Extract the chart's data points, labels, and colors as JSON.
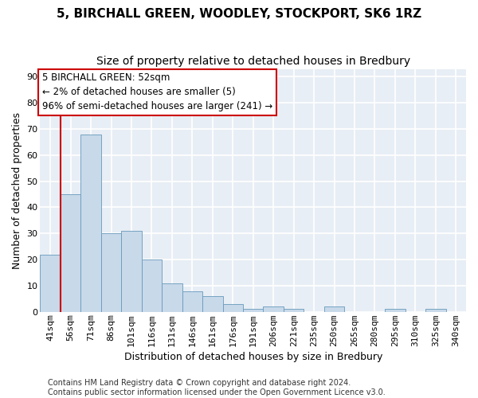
{
  "title": "5, BIRCHALL GREEN, WOODLEY, STOCKPORT, SK6 1RZ",
  "subtitle": "Size of property relative to detached houses in Bredbury",
  "xlabel": "Distribution of detached houses by size in Bredbury",
  "ylabel": "Number of detached properties",
  "bar_color": "#c8d9ea",
  "bar_edge_color": "#6699bb",
  "categories": [
    "41sqm",
    "56sqm",
    "71sqm",
    "86sqm",
    "101sqm",
    "116sqm",
    "131sqm",
    "146sqm",
    "161sqm",
    "176sqm",
    "191sqm",
    "206sqm",
    "221sqm",
    "235sqm",
    "250sqm",
    "265sqm",
    "280sqm",
    "295sqm",
    "310sqm",
    "325sqm",
    "340sqm"
  ],
  "values": [
    22,
    45,
    68,
    30,
    31,
    20,
    11,
    8,
    6,
    3,
    1,
    2,
    1,
    0,
    2,
    0,
    0,
    1,
    0,
    1,
    0
  ],
  "ylim": [
    0,
    93
  ],
  "yticks": [
    0,
    10,
    20,
    30,
    40,
    50,
    60,
    70,
    80,
    90
  ],
  "vline_color": "#cc0000",
  "annotation_text": "5 BIRCHALL GREEN: 52sqm\n← 2% of detached houses are smaller (5)\n96% of semi-detached houses are larger (241) →",
  "annotation_box_color": "#ffffff",
  "annotation_box_edge": "#cc0000",
  "footer_line1": "Contains HM Land Registry data © Crown copyright and database right 2024.",
  "footer_line2": "Contains public sector information licensed under the Open Government Licence v3.0.",
  "fig_bg_color": "#ffffff",
  "plot_bg_color": "#e8eef5",
  "grid_color": "#ffffff",
  "title_fontsize": 11,
  "subtitle_fontsize": 10,
  "tick_fontsize": 8,
  "ylabel_fontsize": 9,
  "xlabel_fontsize": 9,
  "annotation_fontsize": 8.5,
  "footer_fontsize": 7
}
